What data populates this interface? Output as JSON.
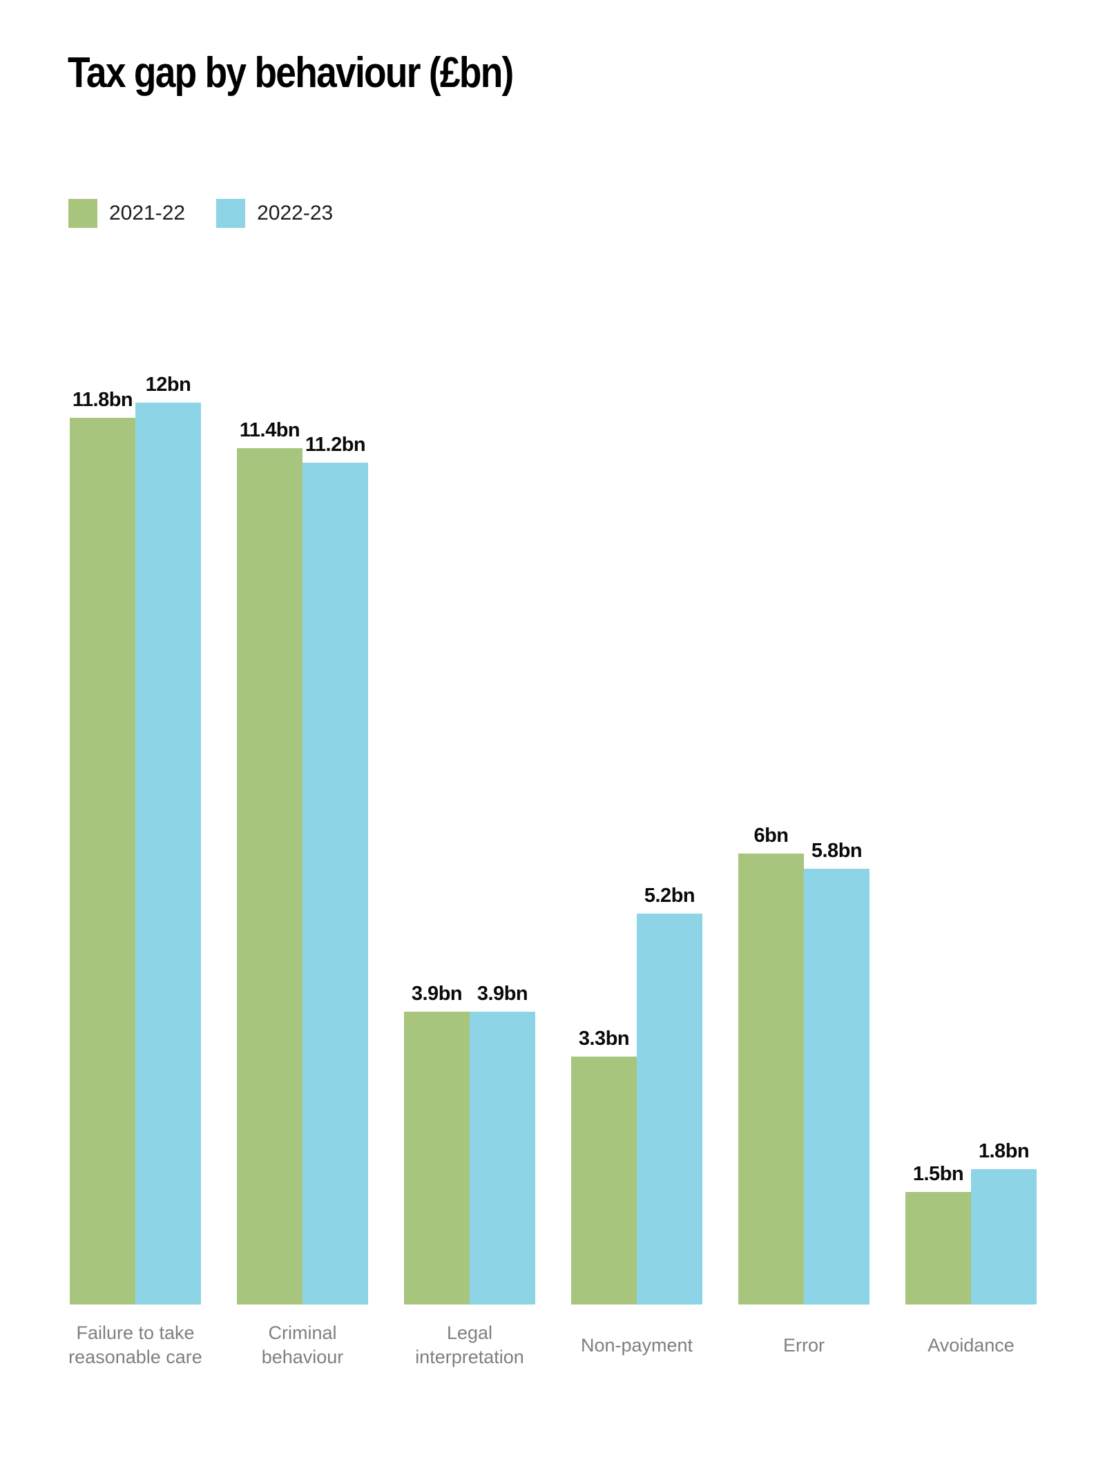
{
  "chart_data": {
    "type": "bar",
    "title": "Tax gap by behaviour (£bn)",
    "categories": [
      "Failure to take reasonable care",
      "Criminal behaviour",
      "Legal interpretation",
      "Non-payment",
      "Error",
      "Avoidance"
    ],
    "series": [
      {
        "name": "2021-22",
        "color": "#a8c57e",
        "values": [
          11.8,
          11.4,
          3.9,
          3.3,
          6,
          1.5
        ],
        "labels": [
          "11.8bn",
          "11.4bn",
          "3.9bn",
          "3.3bn",
          "6bn",
          "1.5bn"
        ]
      },
      {
        "name": "2022-23",
        "color": "#8dd4e6",
        "values": [
          12,
          11.2,
          3.9,
          5.2,
          5.8,
          1.8
        ],
        "labels": [
          "12bn",
          "11.2bn",
          "3.9bn",
          "5.2bn",
          "5.8bn",
          "1.8bn"
        ]
      }
    ],
    "ylim": [
      0,
      12
    ],
    "grid": false,
    "axes_hidden": true,
    "value_labels_shown": true,
    "legend_position": "top-left",
    "category_label_color": "#7f7f7f",
    "background_color": "#ffffff"
  }
}
